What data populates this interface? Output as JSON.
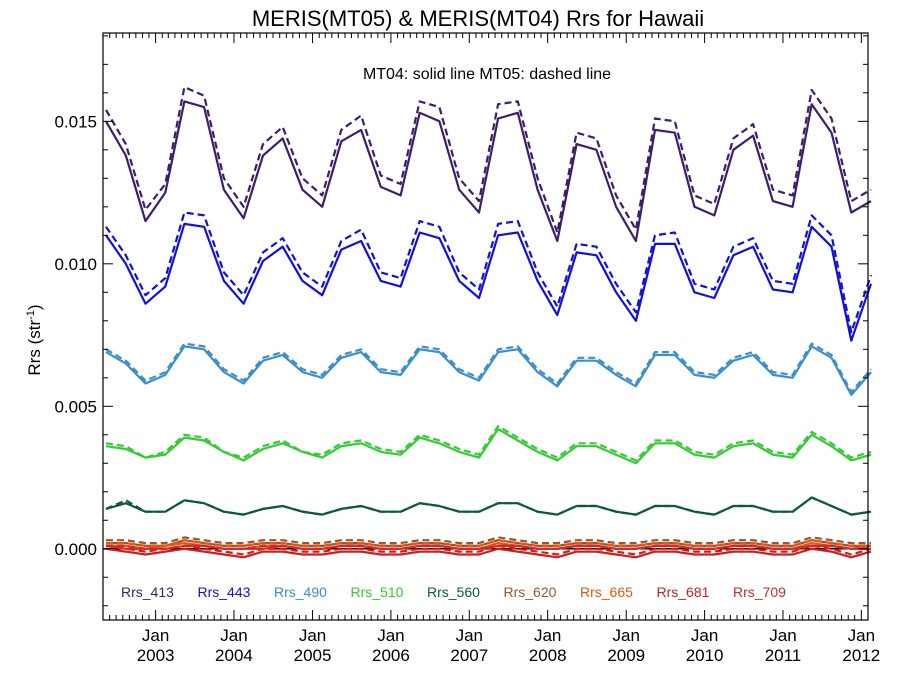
{
  "chart_data": {
    "type": "line",
    "title": "MERIS(MT05) & MERIS(MT04)  Rrs for Hawaii",
    "ylabel": "Rrs (str",
    "ylabel_sup": "-1",
    "annotation": "MT04: solid line   MT05: dashed line",
    "xlim": [
      "2002-05-01",
      "2012-02-01"
    ],
    "ylim": [
      -0.0025,
      0.0181
    ],
    "grid": false,
    "legend_placement": "bottom-inside",
    "x_ticks": [
      {
        "date": "2003-01-01",
        "top": "Jan",
        "bottom": "2003"
      },
      {
        "date": "2004-01-01",
        "top": "Jan",
        "bottom": "2004"
      },
      {
        "date": "2005-01-01",
        "top": "Jan",
        "bottom": "2005"
      },
      {
        "date": "2006-01-01",
        "top": "Jan",
        "bottom": "2006"
      },
      {
        "date": "2007-01-01",
        "top": "Jan",
        "bottom": "2007"
      },
      {
        "date": "2008-01-01",
        "top": "Jan",
        "bottom": "2008"
      },
      {
        "date": "2009-01-01",
        "top": "Jan",
        "bottom": "2009"
      },
      {
        "date": "2010-01-01",
        "top": "Jan",
        "bottom": "2010"
      },
      {
        "date": "2011-01-01",
        "top": "Jan",
        "bottom": "2011"
      },
      {
        "date": "2012-01-01",
        "top": "Jan",
        "bottom": "2012"
      }
    ],
    "y_ticks": [
      {
        "value": 0.0,
        "label": "0.000"
      },
      {
        "value": 0.005,
        "label": "0.005"
      },
      {
        "value": 0.01,
        "label": "0.010"
      },
      {
        "value": 0.015,
        "label": "0.015"
      }
    ],
    "zero_line": 0.0,
    "x": [
      "2002-05",
      "2002-08",
      "2002-11",
      "2003-02",
      "2003-05",
      "2003-08",
      "2003-11",
      "2004-02",
      "2004-05",
      "2004-08",
      "2004-11",
      "2005-02",
      "2005-05",
      "2005-08",
      "2005-11",
      "2006-02",
      "2006-05",
      "2006-08",
      "2006-11",
      "2007-02",
      "2007-05",
      "2007-08",
      "2007-11",
      "2008-02",
      "2008-05",
      "2008-08",
      "2008-11",
      "2009-02",
      "2009-05",
      "2009-08",
      "2009-11",
      "2010-02",
      "2010-05",
      "2010-08",
      "2010-11",
      "2011-02",
      "2011-05",
      "2011-08",
      "2011-11",
      "2012-02"
    ],
    "series": [
      {
        "name": "Rrs_413",
        "color": "#3d1e6d",
        "mt04": [
          0.015,
          0.0138,
          0.0115,
          0.0125,
          0.0157,
          0.0155,
          0.0126,
          0.0116,
          0.0138,
          0.0144,
          0.0126,
          0.012,
          0.0143,
          0.0147,
          0.0127,
          0.0124,
          0.0153,
          0.015,
          0.0126,
          0.0118,
          0.0151,
          0.0153,
          0.0126,
          0.0108,
          0.0142,
          0.014,
          0.012,
          0.0108,
          0.0147,
          0.0146,
          0.012,
          0.0117,
          0.014,
          0.0145,
          0.0122,
          0.012,
          0.0156,
          0.0146,
          0.0118,
          0.0122
        ],
        "mt05": [
          0.0154,
          0.0142,
          0.0119,
          0.0128,
          0.0162,
          0.0159,
          0.013,
          0.012,
          0.0142,
          0.0148,
          0.013,
          0.0124,
          0.0147,
          0.0152,
          0.0131,
          0.0128,
          0.0157,
          0.0155,
          0.013,
          0.0122,
          0.0156,
          0.0157,
          0.013,
          0.0111,
          0.0146,
          0.0144,
          0.0124,
          0.0112,
          0.0151,
          0.015,
          0.0124,
          0.0121,
          0.0144,
          0.0149,
          0.0126,
          0.0124,
          0.0161,
          0.0151,
          0.0122,
          0.0126
        ]
      },
      {
        "name": "Rrs_443",
        "color": "#1010e0",
        "mt04": [
          0.011,
          0.01,
          0.0086,
          0.0092,
          0.0114,
          0.0113,
          0.0094,
          0.0086,
          0.0101,
          0.0106,
          0.0094,
          0.0089,
          0.0105,
          0.0108,
          0.0094,
          0.0092,
          0.0111,
          0.0109,
          0.0094,
          0.0088,
          0.011,
          0.0111,
          0.0094,
          0.0082,
          0.0104,
          0.0103,
          0.009,
          0.008,
          0.0107,
          0.0107,
          0.009,
          0.0088,
          0.0103,
          0.0106,
          0.0091,
          0.009,
          0.0113,
          0.0106,
          0.0073,
          0.0093
        ],
        "mt05": [
          0.0113,
          0.0103,
          0.0089,
          0.0095,
          0.0118,
          0.0117,
          0.0097,
          0.0089,
          0.0104,
          0.0109,
          0.0097,
          0.0092,
          0.0108,
          0.0112,
          0.0097,
          0.0095,
          0.0115,
          0.0113,
          0.0097,
          0.0091,
          0.0114,
          0.0115,
          0.0097,
          0.0085,
          0.0107,
          0.0106,
          0.0093,
          0.0083,
          0.011,
          0.0111,
          0.0093,
          0.0091,
          0.0106,
          0.0109,
          0.0094,
          0.0093,
          0.0117,
          0.011,
          0.0076,
          0.0096
        ]
      },
      {
        "name": "Rrs_490",
        "color": "#3a8fcc",
        "mt04": [
          0.0069,
          0.0065,
          0.0058,
          0.0061,
          0.0071,
          0.007,
          0.0062,
          0.0058,
          0.0066,
          0.0068,
          0.0062,
          0.006,
          0.0067,
          0.0069,
          0.0062,
          0.0061,
          0.007,
          0.0069,
          0.0062,
          0.0059,
          0.0069,
          0.007,
          0.0062,
          0.0057,
          0.0066,
          0.0066,
          0.0061,
          0.0057,
          0.0068,
          0.0068,
          0.0061,
          0.006,
          0.0066,
          0.0068,
          0.0061,
          0.006,
          0.0071,
          0.0067,
          0.0054,
          0.0062
        ],
        "mt05": [
          0.007,
          0.0066,
          0.0059,
          0.0062,
          0.0072,
          0.0071,
          0.0063,
          0.0059,
          0.0067,
          0.0069,
          0.0063,
          0.0061,
          0.0068,
          0.007,
          0.0063,
          0.0062,
          0.0071,
          0.007,
          0.0063,
          0.006,
          0.007,
          0.0071,
          0.0063,
          0.0058,
          0.0067,
          0.0067,
          0.0062,
          0.0058,
          0.0069,
          0.0069,
          0.0062,
          0.0061,
          0.0067,
          0.0069,
          0.0062,
          0.0061,
          0.0072,
          0.0068,
          0.0055,
          0.0063
        ]
      },
      {
        "name": "Rrs_510",
        "color": "#33cc33",
        "mt04": [
          0.0036,
          0.0035,
          0.0032,
          0.0033,
          0.0039,
          0.0038,
          0.0034,
          0.0031,
          0.0035,
          0.0037,
          0.0034,
          0.0032,
          0.0036,
          0.0037,
          0.0034,
          0.0033,
          0.0039,
          0.0037,
          0.0034,
          0.0032,
          0.0042,
          0.0038,
          0.0034,
          0.0031,
          0.0036,
          0.0036,
          0.0033,
          0.003,
          0.0037,
          0.0037,
          0.0033,
          0.0032,
          0.0036,
          0.0037,
          0.0033,
          0.0032,
          0.004,
          0.0036,
          0.0031,
          0.0033
        ],
        "mt05": [
          0.0037,
          0.0036,
          0.0032,
          0.0034,
          0.004,
          0.0039,
          0.0034,
          0.0032,
          0.0036,
          0.0038,
          0.0034,
          0.0033,
          0.0037,
          0.0038,
          0.0035,
          0.0034,
          0.004,
          0.0038,
          0.0035,
          0.0033,
          0.0043,
          0.0039,
          0.0035,
          0.0032,
          0.0037,
          0.0037,
          0.0034,
          0.0031,
          0.0038,
          0.0038,
          0.0034,
          0.0033,
          0.0037,
          0.0038,
          0.0034,
          0.0033,
          0.0041,
          0.0037,
          0.0032,
          0.0034
        ]
      },
      {
        "name": "Rrs_560",
        "color": "#0a5c36",
        "mt04": [
          0.0014,
          0.0016,
          0.0013,
          0.0013,
          0.0017,
          0.0016,
          0.0013,
          0.0012,
          0.0014,
          0.0015,
          0.0013,
          0.0012,
          0.0014,
          0.0015,
          0.0013,
          0.0013,
          0.0016,
          0.0015,
          0.0013,
          0.0013,
          0.0016,
          0.0016,
          0.0013,
          0.0012,
          0.0015,
          0.0015,
          0.0013,
          0.0012,
          0.0015,
          0.0015,
          0.0013,
          0.0012,
          0.0015,
          0.0015,
          0.0013,
          0.0013,
          0.0018,
          0.0015,
          0.0012,
          0.0013
        ],
        "mt05": [
          0.0014,
          0.0017,
          0.0013,
          0.0013,
          0.0017,
          0.0016,
          0.0013,
          0.0012,
          0.0014,
          0.0015,
          0.0013,
          0.0012,
          0.0014,
          0.0015,
          0.0013,
          0.0013,
          0.0016,
          0.0015,
          0.0013,
          0.0013,
          0.0016,
          0.0016,
          0.0013,
          0.0012,
          0.0015,
          0.0015,
          0.0013,
          0.0012,
          0.0015,
          0.0015,
          0.0013,
          0.0012,
          0.0015,
          0.0015,
          0.0013,
          0.0013,
          0.0018,
          0.0015,
          0.0012,
          0.0013
        ]
      },
      {
        "name": "Rrs_620",
        "color": "#a0522d",
        "mt04": [
          0.0002,
          0.0002,
          0.0001,
          0.0001,
          0.0003,
          0.0002,
          0.0001,
          0.0001,
          0.0002,
          0.0002,
          0.0001,
          0.0001,
          0.0002,
          0.0002,
          0.0001,
          0.0001,
          0.0002,
          0.0002,
          0.0001,
          0.0001,
          0.0003,
          0.0002,
          0.0001,
          0.0001,
          0.0002,
          0.0002,
          0.0001,
          0.0001,
          0.0002,
          0.0002,
          0.0001,
          0.0001,
          0.0002,
          0.0002,
          0.0001,
          0.0001,
          0.0003,
          0.0002,
          0.0001,
          0.0001
        ],
        "mt05": [
          0.0003,
          0.0003,
          0.0002,
          0.0002,
          0.0004,
          0.0003,
          0.0002,
          0.0002,
          0.0003,
          0.0003,
          0.0002,
          0.0002,
          0.0003,
          0.0003,
          0.0002,
          0.0002,
          0.0003,
          0.0003,
          0.0002,
          0.0002,
          0.0004,
          0.0003,
          0.0002,
          0.0002,
          0.0003,
          0.0003,
          0.0002,
          0.0002,
          0.0003,
          0.0003,
          0.0002,
          0.0002,
          0.0003,
          0.0003,
          0.0002,
          0.0002,
          0.0004,
          0.0003,
          0.0002,
          0.0002
        ]
      },
      {
        "name": "Rrs_665",
        "color": "#e05a10",
        "mt04": [
          0.0001,
          0.0001,
          0.0,
          0.0001,
          0.0002,
          0.0001,
          0.0,
          0.0,
          0.0001,
          0.0001,
          0.0,
          0.0,
          0.0001,
          0.0001,
          0.0,
          0.0,
          0.0001,
          0.0001,
          0.0,
          0.0,
          0.0002,
          0.0001,
          0.0,
          0.0,
          0.0001,
          0.0001,
          0.0,
          0.0,
          0.0001,
          0.0001,
          0.0,
          0.0,
          0.0001,
          0.0001,
          0.0,
          0.0,
          0.0002,
          0.0001,
          0.0,
          0.0001
        ],
        "mt05": [
          0.0002,
          0.0002,
          0.0001,
          0.0001,
          0.0003,
          0.0002,
          0.0001,
          0.0001,
          0.0002,
          0.0002,
          0.0001,
          0.0001,
          0.0002,
          0.0002,
          0.0001,
          0.0001,
          0.0002,
          0.0002,
          0.0001,
          0.0001,
          0.0003,
          0.0002,
          0.0001,
          0.0001,
          0.0002,
          0.0002,
          0.0001,
          0.0001,
          0.0002,
          0.0002,
          0.0001,
          0.0001,
          0.0002,
          0.0002,
          0.0001,
          0.0001,
          0.0003,
          0.0002,
          0.0001,
          0.0001
        ]
      },
      {
        "name": "Rrs_681",
        "color": "#cc1f1f",
        "mt04": [
          0.0,
          -0.0001,
          -0.0002,
          -0.0001,
          0.0,
          -0.0001,
          -0.0002,
          -0.0003,
          -0.0001,
          -0.0001,
          -0.0002,
          -0.0002,
          -0.0001,
          -0.0001,
          -0.0002,
          -0.0002,
          -0.0001,
          -0.0001,
          -0.0002,
          -0.0002,
          0.0,
          -0.0001,
          -0.0002,
          -0.0003,
          -0.0001,
          -0.0001,
          -0.0002,
          -0.0003,
          -0.0001,
          -0.0001,
          -0.0002,
          -0.0002,
          -0.0001,
          -0.0001,
          -0.0002,
          -0.0002,
          0.0,
          -0.0001,
          -0.0003,
          -0.0001
        ],
        "mt05": [
          0.0001,
          0.0,
          -0.0001,
          0.0,
          0.0001,
          0.0,
          -0.0001,
          -0.0002,
          0.0,
          0.0,
          -0.0001,
          -0.0001,
          0.0,
          0.0,
          -0.0001,
          -0.0001,
          0.0,
          0.0,
          -0.0001,
          -0.0001,
          0.0001,
          0.0,
          -0.0001,
          -0.0002,
          0.0,
          0.0,
          -0.0001,
          -0.0002,
          0.0,
          0.0,
          -0.0001,
          -0.0001,
          0.0,
          0.0,
          -0.0001,
          -0.0001,
          0.0001,
          0.0,
          -0.0002,
          0.0
        ]
      },
      {
        "name": "Rrs_709",
        "color": "#d12a2a",
        "mt04": [
          0.0001,
          0.0,
          0.0,
          0.0,
          0.0001,
          0.0001,
          0.0,
          0.0,
          0.0,
          0.0001,
          0.0,
          0.0,
          0.0001,
          0.0001,
          0.0,
          0.0,
          0.0001,
          0.0001,
          0.0,
          0.0,
          0.0001,
          0.0001,
          0.0,
          0.0,
          0.0001,
          0.0001,
          0.0,
          0.0,
          0.0001,
          0.0001,
          0.0,
          0.0,
          0.0001,
          0.0001,
          0.0,
          0.0,
          0.0001,
          0.0001,
          0.0,
          0.0
        ],
        "mt05": [
          0.0001,
          0.0001,
          0.0,
          0.0,
          0.0001,
          0.0001,
          0.0,
          0.0,
          0.0001,
          0.0001,
          0.0,
          0.0,
          0.0001,
          0.0001,
          0.0,
          0.0,
          0.0001,
          0.0001,
          0.0,
          0.0,
          0.0001,
          0.0001,
          0.0,
          0.0,
          0.0001,
          0.0001,
          0.0,
          0.0,
          0.0001,
          0.0001,
          0.0,
          0.0,
          0.0001,
          0.0001,
          0.0,
          0.0,
          0.0001,
          0.0001,
          0.0,
          0.0
        ]
      }
    ]
  }
}
